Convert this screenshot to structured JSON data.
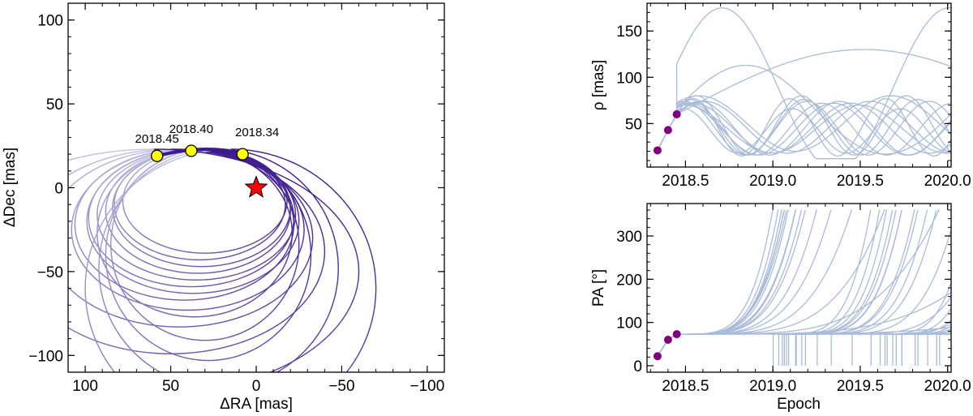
{
  "colors": {
    "orbit_dark": "#3d1a8e",
    "orbit_light": "#c9cce6",
    "track": "#a9bbd9",
    "epoch_marker": "#ffff00",
    "obs_marker": "#800080",
    "star": "#ff0000"
  },
  "chart_data": [
    {
      "id": "sky",
      "type": "line",
      "xlabel": "ΔRA [mas]",
      "ylabel": "ΔDec [mas]",
      "xlim": [
        110,
        -110
      ],
      "ylim": [
        -110,
        110
      ],
      "xticks": [
        100,
        50,
        0,
        -50,
        -100
      ],
      "yticks": [
        -100,
        -50,
        0,
        50,
        100
      ],
      "xtick_labels": [
        "100",
        "50",
        "0",
        "−50",
        "−100"
      ],
      "ytick_labels": [
        "−100",
        "−50",
        "0",
        "50",
        "100"
      ],
      "star": {
        "x": 0,
        "y": 0
      },
      "epochs": [
        {
          "label": "2018.45",
          "x": 58,
          "y": 19
        },
        {
          "label": "2018.40",
          "x": 38,
          "y": 22
        },
        {
          "label": "2018.34",
          "x": 8,
          "y": 20
        }
      ],
      "orbits": [
        {
          "cx": 30,
          "cy": -8,
          "a": 48,
          "b": 31
        },
        {
          "cx": 32,
          "cy": -12,
          "a": 52,
          "b": 35
        },
        {
          "cx": 35,
          "cy": -16,
          "a": 58,
          "b": 39
        },
        {
          "cx": 37,
          "cy": -20,
          "a": 62,
          "b": 43
        },
        {
          "cx": 40,
          "cy": -25,
          "a": 68,
          "b": 48
        },
        {
          "cx": 33,
          "cy": -10,
          "a": 50,
          "b": 33
        },
        {
          "cx": 38,
          "cy": -18,
          "a": 60,
          "b": 41
        },
        {
          "cx": 45,
          "cy": -30,
          "a": 78,
          "b": 53
        },
        {
          "cx": 42,
          "cy": -22,
          "a": 64,
          "b": 45
        },
        {
          "cx": 34,
          "cy": -14,
          "a": 54,
          "b": 37
        },
        {
          "cx": 36,
          "cy": -27,
          "a": 57,
          "b": 50
        },
        {
          "cx": 30,
          "cy": -34,
          "a": 55,
          "b": 57
        },
        {
          "cx": 28,
          "cy": -40,
          "a": 60,
          "b": 63
        },
        {
          "cx": 50,
          "cy": -38,
          "a": 90,
          "b": 61
        },
        {
          "cx": 22,
          "cy": -48,
          "a": 70,
          "b": 71
        },
        {
          "cx": 15,
          "cy": -60,
          "a": 85,
          "b": 83
        },
        {
          "cx": 60,
          "cy": -50,
          "a": 120,
          "b": 73
        }
      ]
    },
    {
      "id": "separation",
      "type": "line",
      "xlabel": "",
      "ylabel": "ρ [mas]",
      "xlim": [
        2018.28,
        2020.02
      ],
      "ylim": [
        3,
        180
      ],
      "xticks": [
        2018.5,
        2019.0,
        2019.5,
        2020.0
      ],
      "xtick_labels": [
        "2018.5",
        "2019.0",
        "2019.5",
        "2020.0"
      ],
      "yticks": [
        50,
        100,
        150
      ],
      "ytick_labels": [
        "50",
        "100",
        "150"
      ],
      "observations": [
        {
          "epoch": 2018.34,
          "value": 21
        },
        {
          "epoch": 2018.4,
          "value": 43
        },
        {
          "epoch": 2018.45,
          "value": 60
        }
      ],
      "tracks": [
        {
          "period": 1.3,
          "amp": 88,
          "base": 87,
          "phase": 0.1
        },
        {
          "period": 0.6,
          "amp": 32,
          "base": 48,
          "phase": 0.0
        },
        {
          "period": 0.65,
          "amp": 30,
          "base": 46,
          "phase": 0.05
        },
        {
          "period": 0.7,
          "amp": 29,
          "base": 45,
          "phase": 0.1
        },
        {
          "period": 0.75,
          "amp": 28,
          "base": 44,
          "phase": 0.05
        },
        {
          "period": 0.8,
          "amp": 29,
          "base": 45,
          "phase": 0.0
        },
        {
          "period": 0.85,
          "amp": 28,
          "base": 44,
          "phase": 0.1
        },
        {
          "period": 0.9,
          "amp": 27,
          "base": 45,
          "phase": 0.05
        },
        {
          "period": 0.95,
          "amp": 28,
          "base": 46,
          "phase": 0.0
        },
        {
          "period": 1.0,
          "amp": 26,
          "base": 44,
          "phase": 0.1
        },
        {
          "period": 0.55,
          "amp": 31,
          "base": 46,
          "phase": 0.0
        },
        {
          "period": 0.62,
          "amp": 24,
          "base": 42,
          "phase": 0.05
        },
        {
          "period": 1.1,
          "amp": 30,
          "base": 50,
          "phase": 0.08
        },
        {
          "period": 4.0,
          "amp": 63,
          "base": 67,
          "phase": 0.0
        },
        {
          "period": 1.6,
          "amp": 48,
          "base": 65,
          "phase": 0.02
        }
      ]
    },
    {
      "id": "position_angle",
      "type": "line",
      "xlabel": "Epoch",
      "ylabel": "PA [°]",
      "xlim": [
        2018.28,
        2020.02
      ],
      "ylim": [
        -15,
        375
      ],
      "xticks": [
        2018.5,
        2019.0,
        2019.5,
        2020.0
      ],
      "xtick_labels": [
        "2018.5",
        "2019.0",
        "2019.5",
        "2020.0"
      ],
      "yticks": [
        0,
        100,
        200,
        300
      ],
      "ytick_labels": [
        "0",
        "100",
        "200",
        "300"
      ],
      "observations": [
        {
          "epoch": 2018.34,
          "value": 22
        },
        {
          "epoch": 2018.4,
          "value": 60
        },
        {
          "epoch": 2018.45,
          "value": 73
        }
      ],
      "tracks": [
        {
          "period": 0.6,
          "offset": 0.0
        },
        {
          "period": 0.62,
          "offset": 0.01
        },
        {
          "period": 0.65,
          "offset": 0.02
        },
        {
          "period": 0.68,
          "offset": 0.0
        },
        {
          "period": 0.7,
          "offset": 0.03
        },
        {
          "period": 0.72,
          "offset": 0.01
        },
        {
          "period": 0.75,
          "offset": 0.02
        },
        {
          "period": 0.58,
          "offset": 0.0
        },
        {
          "period": 0.56,
          "offset": 0.02
        },
        {
          "period": 0.64,
          "offset": 0.04
        },
        {
          "period": 0.66,
          "offset": 0.05
        },
        {
          "period": 0.8,
          "offset": 0.0
        },
        {
          "period": 0.9,
          "offset": 0.02
        },
        {
          "period": 1.0,
          "offset": 0.0
        },
        {
          "period": 1.2,
          "offset": 0.01
        },
        {
          "period": 1.5,
          "offset": 0.0
        },
        {
          "period": 2.0,
          "offset": 0.0
        },
        {
          "period": 3.0,
          "offset": 0.0
        }
      ]
    }
  ]
}
